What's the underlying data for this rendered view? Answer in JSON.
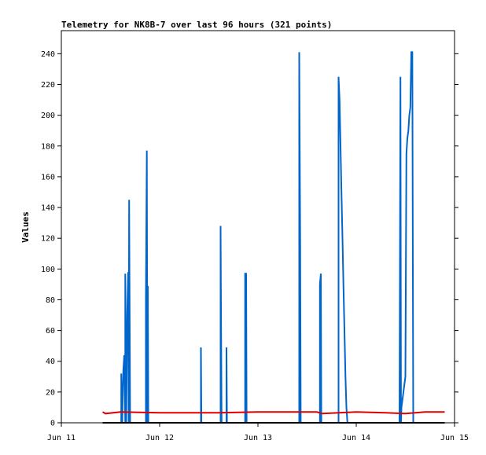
{
  "chart_data": {
    "type": "line",
    "title": "Telemetry for NK8B-7 over last 96 hours (321 points)",
    "xlabel": "",
    "ylabel": "Values",
    "ylim": [
      0,
      255
    ],
    "yticks": [
      0,
      20,
      40,
      60,
      80,
      100,
      120,
      140,
      160,
      180,
      200,
      220,
      240
    ],
    "x_ticks": [
      {
        "label": "Jun 11",
        "day": 11
      },
      {
        "label": "Jun 12",
        "day": 12
      },
      {
        "label": "Jun 13",
        "day": 13
      },
      {
        "label": "Jun 14",
        "day": 14
      },
      {
        "label": "Jun 15",
        "day": 15
      }
    ],
    "xlim_days": [
      11,
      15
    ],
    "grid": false,
    "legend": "none",
    "series": [
      {
        "color": "#0066cc",
        "points": [
          [
            11.61,
            0
          ],
          [
            11.61,
            32
          ],
          [
            11.62,
            0
          ],
          [
            11.63,
            34
          ],
          [
            11.64,
            44
          ],
          [
            11.65,
            0
          ],
          [
            11.65,
            97
          ],
          [
            11.66,
            0
          ],
          [
            11.67,
            71
          ],
          [
            11.68,
            98
          ],
          [
            11.685,
            0
          ],
          [
            11.69,
            145
          ],
          [
            11.7,
            0
          ],
          [
            11.86,
            0
          ],
          [
            11.86,
            80
          ],
          [
            11.87,
            177
          ],
          [
            11.875,
            0
          ],
          [
            11.88,
            89
          ],
          [
            11.885,
            0
          ],
          [
            12.42,
            0
          ],
          [
            12.42,
            49
          ],
          [
            12.425,
            0
          ],
          [
            12.62,
            0
          ],
          [
            12.62,
            128
          ],
          [
            12.625,
            65
          ],
          [
            12.63,
            0
          ],
          [
            12.68,
            0
          ],
          [
            12.68,
            49
          ],
          [
            12.685,
            0
          ],
          [
            12.87,
            0
          ],
          [
            12.87,
            97
          ],
          [
            12.88,
            97
          ],
          [
            12.885,
            0
          ],
          [
            13.42,
            0
          ],
          [
            13.42,
            241
          ],
          [
            13.43,
            120
          ],
          [
            13.435,
            0
          ],
          [
            13.63,
            0
          ],
          [
            13.63,
            90
          ],
          [
            13.64,
            97
          ],
          [
            13.645,
            0
          ],
          [
            13.82,
            0
          ],
          [
            13.82,
            225
          ],
          [
            13.83,
            210
          ],
          [
            13.84,
            180
          ],
          [
            13.85,
            150
          ],
          [
            13.86,
            120
          ],
          [
            13.87,
            90
          ],
          [
            13.88,
            60
          ],
          [
            13.89,
            30
          ],
          [
            13.9,
            10
          ],
          [
            13.91,
            0
          ],
          [
            14.44,
            0
          ],
          [
            14.45,
            225
          ],
          [
            14.455,
            0
          ],
          [
            14.46,
            10
          ],
          [
            14.48,
            20
          ],
          [
            14.5,
            30
          ],
          [
            14.51,
            175
          ],
          [
            14.52,
            185
          ],
          [
            14.53,
            190
          ],
          [
            14.54,
            200
          ],
          [
            14.55,
            205
          ],
          [
            14.56,
            241
          ],
          [
            14.57,
            241
          ],
          [
            14.575,
            120
          ],
          [
            14.58,
            0
          ]
        ]
      },
      {
        "color": "#dd0000",
        "points": [
          [
            11.42,
            7
          ],
          [
            11.45,
            6
          ],
          [
            11.6,
            7
          ],
          [
            12.0,
            6.5
          ],
          [
            12.6,
            6.5
          ],
          [
            13.0,
            7
          ],
          [
            13.5,
            7
          ],
          [
            13.6,
            7
          ],
          [
            13.65,
            6
          ],
          [
            14.0,
            7
          ],
          [
            14.3,
            6.5
          ],
          [
            14.5,
            6
          ],
          [
            14.7,
            7
          ],
          [
            14.9,
            7
          ]
        ]
      },
      {
        "color": "#000000",
        "points": [
          [
            11.42,
            0
          ],
          [
            14.9,
            0
          ]
        ]
      }
    ]
  }
}
